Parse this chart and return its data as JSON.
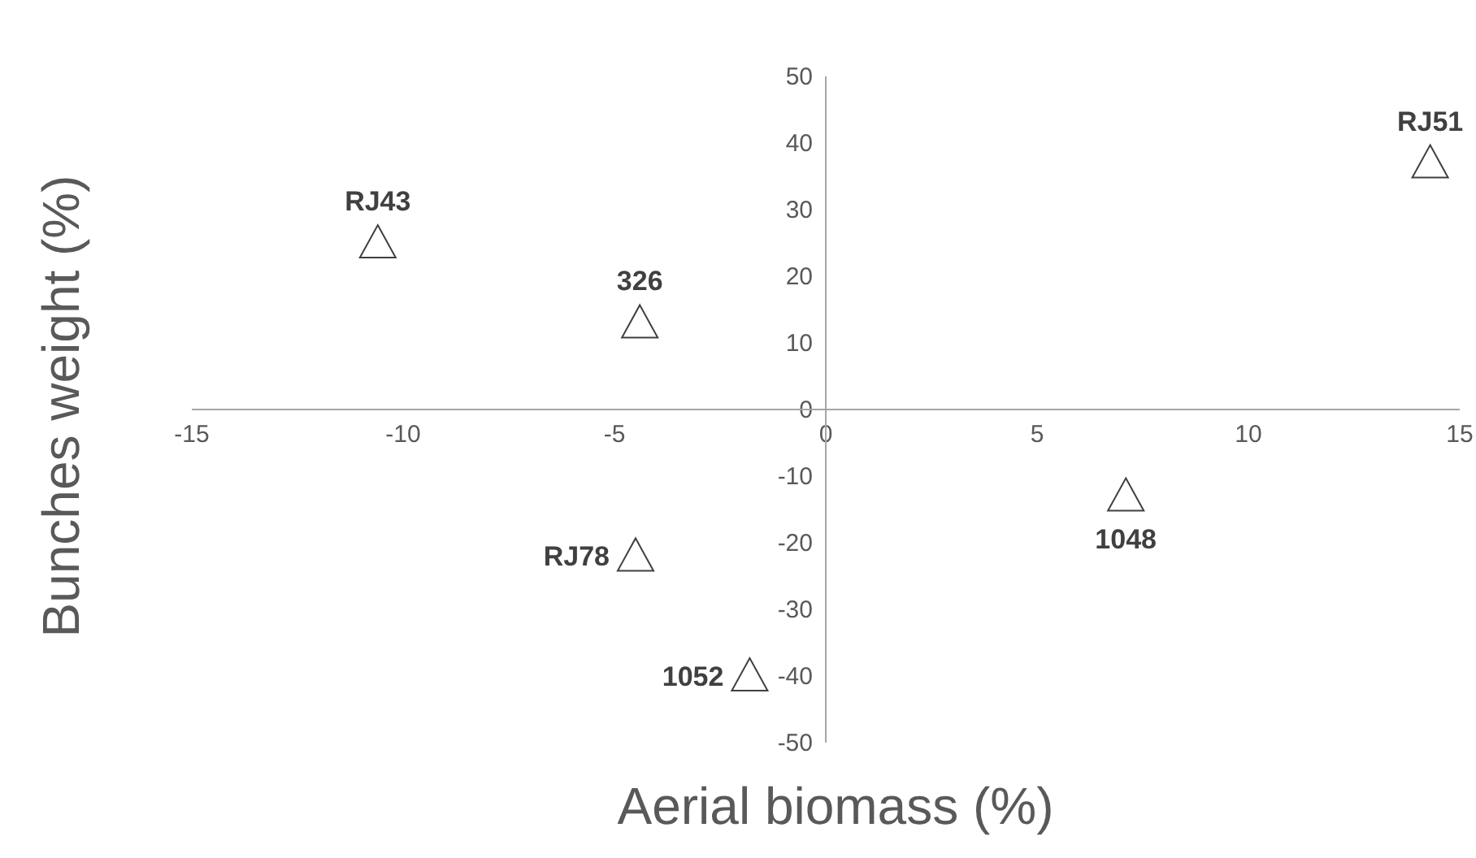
{
  "chart_data": {
    "type": "scatter",
    "xlabel": "Aerial biomass (%)",
    "ylabel": "Bunches weight (%)",
    "x": [
      -10.6,
      -4.4,
      14.3,
      7.1,
      -4.5,
      -1.8
    ],
    "series": [
      {
        "color": "#404040",
        "values": [
          25,
          13,
          37,
          -13,
          -22,
          -40
        ]
      }
    ],
    "xlim": [
      -15,
      15
    ],
    "xticks": [
      -15,
      -10,
      -5,
      0,
      5,
      10,
      15
    ],
    "ylim": [
      -50,
      50
    ],
    "yticks": [
      -50,
      -40,
      -30,
      -20,
      -10,
      0,
      10,
      20,
      30,
      40,
      50
    ],
    "marker": "triangle",
    "grid": false,
    "legend": false,
    "annotations": [
      {
        "text": "RJ43",
        "x": -10.6,
        "y": 25
      },
      {
        "text": "326",
        "x": -4.4,
        "y": 13
      },
      {
        "text": "RJ51",
        "x": 14.3,
        "y": 37
      },
      {
        "text": "1048",
        "x": 7.1,
        "y": -13
      },
      {
        "text": "RJ78",
        "x": -4.5,
        "y": -22
      },
      {
        "text": "1052",
        "x": -1.8,
        "y": -40
      }
    ]
  }
}
